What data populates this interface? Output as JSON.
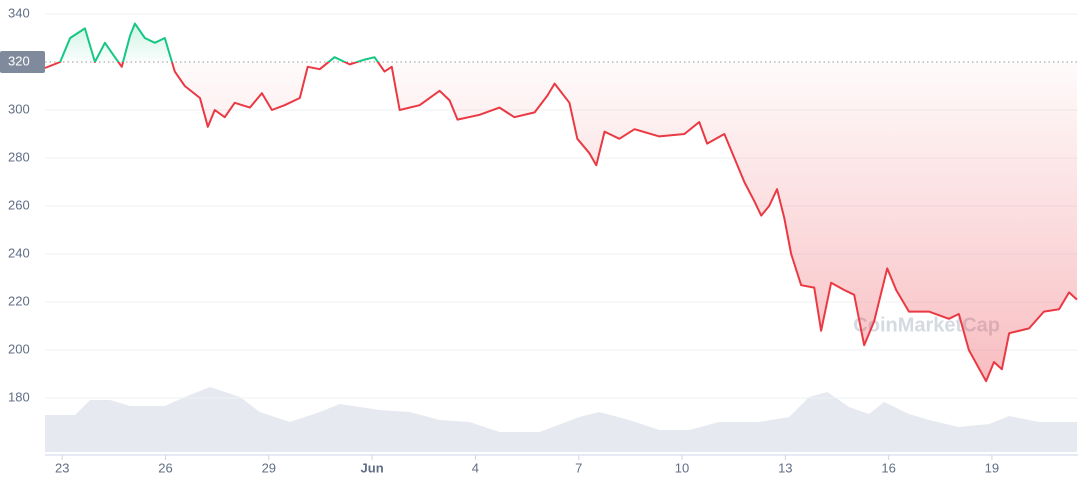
{
  "chart_data": {
    "type": "line",
    "x": [
      0.5,
      0.94,
      1.23,
      1.66,
      1.95,
      2.24,
      2.53,
      2.73,
      2.97,
      3.11,
      3.4,
      3.69,
      3.98,
      4.27,
      4.56,
      5.0,
      5.23,
      5.43,
      5.72,
      6.01,
      6.45,
      6.8,
      7.09,
      7.46,
      7.9,
      8.13,
      8.48,
      8.91,
      9.35,
      9.78,
      10.07,
      10.36,
      10.57,
      10.8,
      11.38,
      11.96,
      12.25,
      12.48,
      13.12,
      13.7,
      14.13,
      14.72,
      15.09,
      15.3,
      15.73,
      15.96,
      16.31,
      16.51,
      16.75,
      17.18,
      17.62,
      18.34,
      19.07,
      19.5,
      19.73,
      20.23,
      20.52,
      20.81,
      21.1,
      21.3,
      21.53,
      21.76,
      21.97,
      22.17,
      22.46,
      22.84,
      23.04,
      23.33,
      23.71,
      24.0,
      24.29,
      24.58,
      24.96,
      25.22,
      25.59,
      26.17,
      26.75,
      27.04,
      27.33,
      27.83,
      28.06,
      28.29,
      28.5,
      29.08,
      29.51,
      29.95,
      30.24,
      30.47
    ],
    "series": [
      {
        "name": "Price",
        "values": [
          317.5,
          320,
          330,
          334,
          320,
          328,
          322,
          318,
          331,
          336,
          330,
          328,
          330,
          316,
          310,
          305,
          293,
          300,
          297,
          303,
          301,
          307,
          300,
          302,
          305,
          318,
          317,
          322,
          319,
          321,
          322,
          316,
          318,
          300,
          302,
          308,
          304,
          296,
          298,
          301,
          297,
          299,
          306,
          311,
          303,
          288,
          282,
          277,
          291,
          288,
          292,
          289,
          290,
          295,
          286,
          290,
          280,
          270,
          262,
          256,
          260,
          267,
          255,
          240,
          227,
          226,
          208,
          228,
          225,
          223,
          202,
          212,
          234,
          225,
          216,
          216,
          213,
          215,
          200,
          187,
          195,
          192,
          207,
          209,
          216,
          217,
          224,
          221
        ]
      }
    ],
    "volume": {
      "x": [
        0.5,
        1.37,
        1.81,
        2.39,
        2.97,
        3.98,
        4.56,
        5.29,
        6.16,
        6.74,
        7.61,
        8.48,
        9.06,
        10.22,
        11.09,
        11.96,
        12.83,
        13.7,
        14.86,
        16.02,
        16.6,
        17.47,
        18.34,
        19.21,
        20.08,
        21.24,
        22.11,
        22.69,
        23.22,
        23.85,
        24.43,
        24.87,
        25.59,
        26.17,
        27.04,
        27.92,
        28.5,
        29.37,
        30.47
      ],
      "values": [
        37,
        37,
        52,
        52,
        46,
        46,
        55,
        65,
        55,
        40,
        30,
        40,
        48,
        42,
        40,
        32,
        30,
        20,
        20,
        35,
        40,
        32,
        22,
        22,
        30,
        30,
        35,
        55,
        60,
        45,
        38,
        50,
        38,
        32,
        25,
        28,
        36,
        30,
        30
      ],
      "ylim": [
        0,
        100
      ]
    },
    "xlim": [
      0.5,
      30.5
    ],
    "ylim": [
      170,
      345
    ],
    "baseline": 320,
    "xticks": [
      {
        "value": 1,
        "label": "23"
      },
      {
        "value": 4,
        "label": "26"
      },
      {
        "value": 7,
        "label": "29"
      },
      {
        "value": 10,
        "label": "Jun"
      },
      {
        "value": 13,
        "label": "4"
      },
      {
        "value": 16,
        "label": "7"
      },
      {
        "value": 19,
        "label": "10"
      },
      {
        "value": 22,
        "label": "13"
      },
      {
        "value": 25,
        "label": "16"
      },
      {
        "value": 28,
        "label": "19"
      }
    ],
    "yticks": [
      180,
      200,
      220,
      240,
      260,
      280,
      300,
      320,
      340
    ],
    "grid": true,
    "up_color": "#16c784",
    "down_color": "#ea3943",
    "watermark": "CoinMarketCap"
  }
}
